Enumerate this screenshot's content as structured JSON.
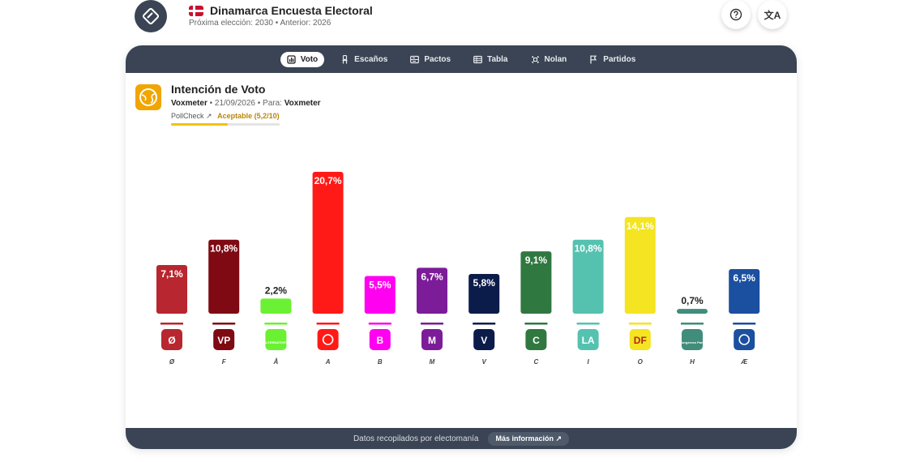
{
  "header": {
    "title": "Dinamarca Encuesta Electoral",
    "subtitle": "Próxima elección: 2030 • Anterior: 2026",
    "help_icon": "question-icon",
    "lang_icon": "translate-icon"
  },
  "tabs": [
    {
      "label": "Voto",
      "icon": "bar-chart-icon",
      "active": true
    },
    {
      "label": "Escaños",
      "icon": "chair-icon",
      "active": false
    },
    {
      "label": "Pactos",
      "icon": "pacts-icon",
      "active": false
    },
    {
      "label": "Tabla",
      "icon": "table-icon",
      "active": false
    },
    {
      "label": "Nolan",
      "icon": "grid-icon",
      "active": false
    },
    {
      "label": "Partidos",
      "icon": "flag-icon",
      "active": false
    }
  ],
  "summary": {
    "title": "Intención de Voto",
    "pollster": "Voxmeter",
    "date": "21/09/2026",
    "for_label": "Para:",
    "for_value": "Voxmeter",
    "pollcheck_label": "PollCheck",
    "pollcheck_rating": "Aceptable (5,2/10)",
    "pollcheck_score": 5.2
  },
  "chart_data": {
    "type": "bar",
    "categories": [
      "Ø",
      "F",
      "Å",
      "A",
      "B",
      "M",
      "V",
      "C",
      "I",
      "O",
      "H",
      "Æ"
    ],
    "values": [
      7.1,
      10.8,
      2.2,
      20.7,
      5.5,
      6.7,
      5.8,
      9.1,
      10.8,
      14.1,
      0.7,
      6.5
    ],
    "value_labels": [
      "7,1%",
      "10,8%",
      "2,2%",
      "20,7%",
      "5,5%",
      "6,7%",
      "5,8%",
      "9,1%",
      "10,8%",
      "14,1%",
      "0,7%",
      "6,5%"
    ],
    "logo_text": [
      "Ø",
      "VP",
      "ALTERNATIVET",
      "",
      "B",
      "M",
      "V",
      "C",
      "LA",
      "DF",
      "Borgernes Parti",
      ""
    ],
    "colors": [
      "#b8262f",
      "#7f0a13",
      "#6bf133",
      "#ff1a17",
      "#ff00f0",
      "#7c1c99",
      "#0c1c4a",
      "#2f7840",
      "#55c2b0",
      "#f4e421",
      "#3f8d7a",
      "#1b4fa0"
    ],
    "ylim": [
      0,
      22
    ],
    "title": "Intención de Voto"
  },
  "footer": {
    "text": "Datos recopilados por electomanía",
    "button": "Más información"
  }
}
